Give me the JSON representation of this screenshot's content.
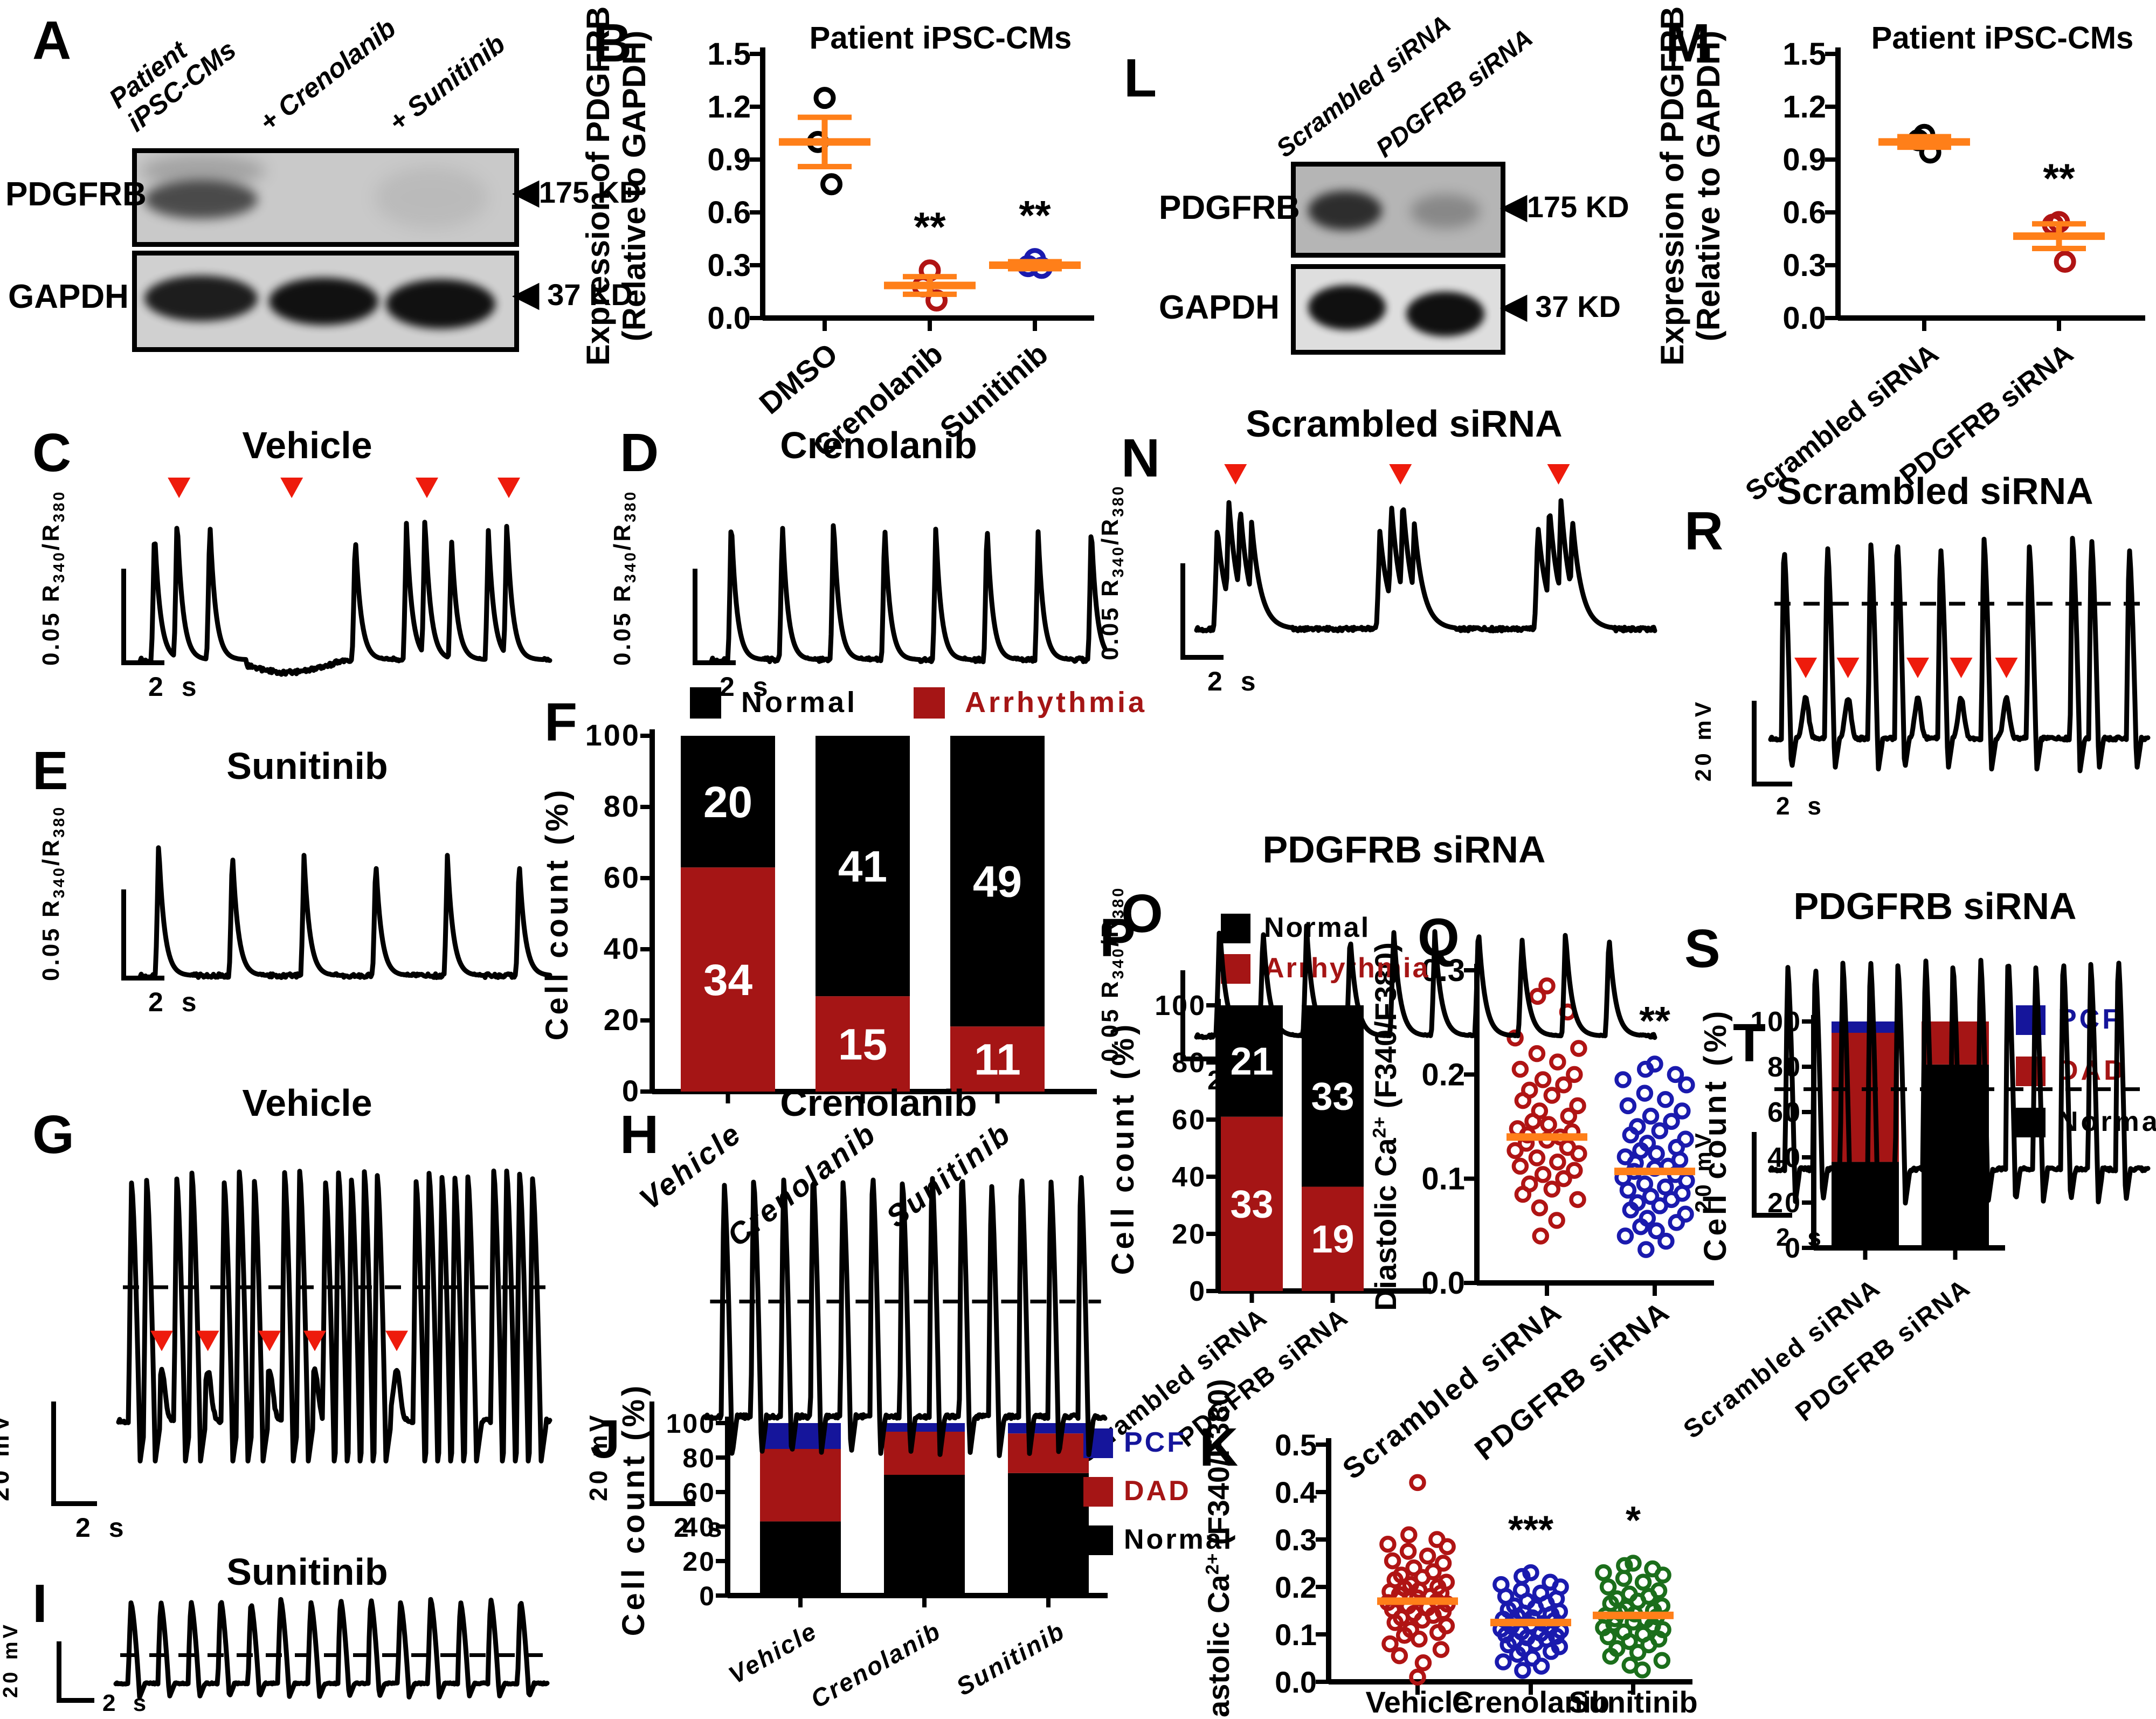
{
  "colors": {
    "black": "#000000",
    "red": "#B01414",
    "darkred_bar": "#A51515",
    "blue": "#1A1AAE",
    "navy_bar": "#15159B",
    "green": "#1B6E1B",
    "orange": "#FF7F19",
    "arrow": "#EE1B0C"
  },
  "labels": {
    "sec": "2 s",
    "mv": "20 mV",
    "ca_pre": "0.05 R",
    "ca_s1": "340",
    "ca_mid": "/R",
    "ca_s2": "380",
    "pdgfrb": "PDGFRB",
    "gapdh": "GAPDH",
    "kd175": "175 KD",
    "kd37": "37 KD",
    "tri": "◀"
  },
  "panels": {
    "A": {
      "letter": "A",
      "lane1": "Patient\niPSC-CMs",
      "lane2": "+ Crenolanib",
      "lane3": "+ Sunitinib"
    },
    "B": {
      "letter": "B",
      "title": "Patient iPSC-CMs",
      "ylabel1": "Expression of PDGFRB",
      "ylabel2": "(Relative to GAPDH)",
      "yticks": [
        "1.5",
        "1.2",
        "0.9",
        "0.6",
        "0.3",
        "0.0"
      ],
      "groups": [
        {
          "name": "DMSO",
          "color": "black",
          "values": [
            1.25,
            1.0,
            0.76
          ],
          "mean": 1.0,
          "sem": 0.14
        },
        {
          "name": "Crenolanib",
          "color": "red",
          "values": [
            0.27,
            0.18,
            0.1
          ],
          "mean": 0.185,
          "sem": 0.05,
          "sig": "**"
        },
        {
          "name": "Sunitinib",
          "color": "blue",
          "values": [
            0.335,
            0.295,
            0.285
          ],
          "mean": 0.3,
          "sem": 0.02,
          "sig": "**"
        }
      ]
    },
    "L": {
      "letter": "L",
      "lane1": "Scrambled siRNA",
      "lane2": "PDGFRB siRNA"
    },
    "M": {
      "letter": "M",
      "title": "Patient iPSC-CMs",
      "ylabel1": "Expression of PDGFRB",
      "ylabel2": "(Relative to GAPDH)",
      "yticks": [
        "1.5",
        "1.2",
        "0.9",
        "0.6",
        "0.3",
        "0.0"
      ],
      "groups": [
        {
          "name": "Scrambled siRNA",
          "color": "black",
          "values": [
            1.04,
            1.01,
            0.94
          ],
          "mean": 1.0,
          "sem": 0.03
        },
        {
          "name": "PDGFRB siRNA",
          "color": "red",
          "values": [
            0.545,
            0.53,
            0.32
          ],
          "mean": 0.465,
          "sem": 0.07,
          "sig": "**"
        }
      ]
    },
    "C": {
      "letter": "C",
      "title": "Vehicle",
      "trace": {
        "kind": "ca",
        "peaks": [
          [
            0.035,
            0.92
          ],
          [
            0.09,
            1.0
          ],
          [
            0.17,
            0.98
          ],
          [
            0.525,
            0.88
          ],
          [
            0.65,
            0.95
          ],
          [
            0.695,
            1.0
          ],
          [
            0.76,
            0.85
          ],
          [
            0.85,
            0.9
          ],
          [
            0.895,
            0.97
          ]
        ],
        "sag": [
          0.22,
          0.5
        ],
        "arrows": [
          0.095,
          0.37,
          0.7,
          0.9
        ]
      }
    },
    "D": {
      "letter": "D",
      "title": "Crenolanib",
      "trace": {
        "kind": "ca",
        "peaks": [
          [
            0.05,
            1
          ],
          [
            0.18,
            0.97
          ],
          [
            0.31,
            1
          ],
          [
            0.44,
            0.96
          ],
          [
            0.57,
            0.93
          ],
          [
            0.7,
            0.97
          ],
          [
            0.83,
            0.9
          ],
          [
            0.965,
            0.95
          ]
        ]
      }
    },
    "E": {
      "letter": "E",
      "title": "Sunitinib",
      "trace": {
        "kind": "ca",
        "peaks": [
          [
            0.045,
            1
          ],
          [
            0.225,
            0.95
          ],
          [
            0.4,
            0.9
          ],
          [
            0.575,
            0.88
          ],
          [
            0.75,
            0.9
          ],
          [
            0.925,
            0.88
          ]
        ]
      }
    },
    "N": {
      "letter": "N",
      "title": "Scrambled siRNA",
      "trace": {
        "kind": "ca",
        "dk": 0.02,
        "peaks": [
          [
            0.045,
            0.78
          ],
          [
            0.07,
            1.0
          ],
          [
            0.095,
            0.95
          ],
          [
            0.12,
            0.82
          ],
          [
            0.4,
            0.75
          ],
          [
            0.425,
            0.97
          ],
          [
            0.45,
            1.0
          ],
          [
            0.475,
            0.82
          ],
          [
            0.745,
            0.8
          ],
          [
            0.77,
            0.95
          ],
          [
            0.795,
            1.0
          ],
          [
            0.82,
            0.86
          ]
        ],
        "arrows": [
          0.085,
          0.445,
          0.79
        ]
      }
    },
    "O": {
      "letter": "O",
      "title": "PDGFRB siRNA",
      "trace": {
        "kind": "ca",
        "peaks": [
          [
            0.05,
            1
          ],
          [
            0.145,
            0.95
          ],
          [
            0.24,
            0.97
          ],
          [
            0.335,
            0.9
          ],
          [
            0.43,
            0.95
          ],
          [
            0.52,
            0.92
          ],
          [
            0.615,
            0.97
          ],
          [
            0.71,
            0.88
          ],
          [
            0.805,
            0.93
          ],
          [
            0.9,
            0.9
          ]
        ]
      }
    },
    "G": {
      "letter": "G",
      "title": "Vehicle",
      "trace": {
        "kind": "ap",
        "dash": 0.4,
        "arrowY": 0.53,
        "spikes": [
          0.03,
          0.065,
          0.135,
          0.17,
          0.245,
          0.28,
          0.315,
          0.385,
          0.42,
          0.48,
          0.51,
          0.54,
          0.57,
          0.6,
          0.69,
          0.72,
          0.75,
          0.78,
          0.81,
          0.87,
          0.9,
          0.93,
          0.96
        ],
        "dads": [
          0.1,
          0.207,
          0.35,
          0.455,
          0.645
        ],
        "arrows": [
          0.1,
          0.207,
          0.35,
          0.455,
          0.645
        ]
      }
    },
    "H": {
      "letter": "H",
      "title": "Crenolanib",
      "trace": {
        "kind": "ap",
        "dash": 0.45,
        "spikes": [
          0.045,
          0.119,
          0.194,
          0.268,
          0.343,
          0.417,
          0.492,
          0.566,
          0.641,
          0.715,
          0.79,
          0.864,
          0.939
        ]
      }
    },
    "I": {
      "letter": "I",
      "title": "Sunitinib",
      "trace": {
        "kind": "ap",
        "dash": 0.55,
        "spikes": [
          0.035,
          0.104,
          0.174,
          0.243,
          0.313,
          0.382,
          0.452,
          0.521,
          0.591,
          0.66,
          0.73,
          0.799,
          0.869,
          0.938
        ]
      }
    },
    "R": {
      "letter": "R",
      "title": "Scrambled siRNA",
      "trace": {
        "kind": "ap",
        "dash": 0.3,
        "arrowY": 0.5,
        "spikes": [
          0.035,
          0.15,
          0.265,
          0.335,
          0.45,
          0.565,
          0.685,
          0.8,
          0.85,
          0.95
        ],
        "dads": [
          0.093,
          0.205,
          0.39,
          0.505,
          0.625
        ],
        "arrows": [
          0.093,
          0.205,
          0.39,
          0.505,
          0.625
        ]
      }
    },
    "S": {
      "letter": "S",
      "title": "PDGFRB siRNA",
      "trace": {
        "kind": "ap",
        "dash": 0.52,
        "spikes": [
          0.045,
          0.118,
          0.191,
          0.264,
          0.337,
          0.41,
          0.483,
          0.556,
          0.629,
          0.702,
          0.775,
          0.848,
          0.921
        ]
      }
    },
    "F": {
      "letter": "F",
      "ylabel": "Cell count (%)",
      "yticks": [
        0,
        20,
        40,
        60,
        80,
        100
      ],
      "legend": [
        {
          "label": "Normal",
          "color": "black"
        },
        {
          "label": "Arrhythmia",
          "color": "darkred_bar"
        }
      ],
      "cats": [
        "Vehicle",
        "Crenolanib",
        "Sunitinib"
      ],
      "bars": [
        {
          "segs": [
            {
              "color": "darkred_bar",
              "pct": 63,
              "n": "34"
            },
            {
              "color": "black",
              "pct": 37,
              "n": "20"
            }
          ]
        },
        {
          "segs": [
            {
              "color": "darkred_bar",
              "pct": 26.8,
              "n": "15"
            },
            {
              "color": "black",
              "pct": 73.2,
              "n": "41"
            }
          ]
        },
        {
          "segs": [
            {
              "color": "darkred_bar",
              "pct": 18.3,
              "n": "11"
            },
            {
              "color": "black",
              "pct": 81.7,
              "n": "49"
            }
          ]
        }
      ]
    },
    "P": {
      "letter": "P",
      "ylabel": "Cell count (%)",
      "yticks": [
        0,
        20,
        40,
        60,
        80,
        100
      ],
      "legend": [
        {
          "label": "Normal",
          "color": "black"
        },
        {
          "label": "Arrhythmia",
          "color": "darkred_bar"
        }
      ],
      "cats": [
        "Scrambled siRNA",
        "PDGFRB siRNA"
      ],
      "bars": [
        {
          "segs": [
            {
              "color": "darkred_bar",
              "pct": 61,
              "n": "33"
            },
            {
              "color": "black",
              "pct": 39,
              "n": "21"
            }
          ]
        },
        {
          "segs": [
            {
              "color": "darkred_bar",
              "pct": 36.5,
              "n": "19"
            },
            {
              "color": "black",
              "pct": 63.5,
              "n": "33"
            }
          ]
        }
      ]
    },
    "J": {
      "letter": "J",
      "ylabel": "Cell count (%)",
      "yticks": [
        0,
        20,
        40,
        60,
        80,
        100
      ],
      "legend": [
        {
          "label": "PCF",
          "color": "navy_bar"
        },
        {
          "label": "DAD",
          "color": "darkred_bar"
        },
        {
          "label": "Normal",
          "color": "black"
        }
      ],
      "cats": [
        "Vehicle",
        "Crenolanib",
        "Sunitinib"
      ],
      "bars": [
        {
          "segs": [
            {
              "color": "black",
              "pct": 43
            },
            {
              "color": "darkred_bar",
              "pct": 42
            },
            {
              "color": "navy_bar",
              "pct": 15
            }
          ]
        },
        {
          "segs": [
            {
              "color": "black",
              "pct": 70
            },
            {
              "color": "darkred_bar",
              "pct": 25
            },
            {
              "color": "navy_bar",
              "pct": 5
            }
          ]
        },
        {
          "segs": [
            {
              "color": "black",
              "pct": 71
            },
            {
              "color": "darkred_bar",
              "pct": 23
            },
            {
              "color": "navy_bar",
              "pct": 6
            }
          ]
        }
      ]
    },
    "T": {
      "letter": "T",
      "ylabel": "Cell count (%)",
      "yticks": [
        0,
        20,
        40,
        60,
        80,
        100
      ],
      "legend": [
        {
          "label": "PCF",
          "color": "navy_bar"
        },
        {
          "label": "DAD",
          "color": "darkred_bar"
        },
        {
          "label": "Normal",
          "color": "black"
        }
      ],
      "cats": [
        "Scrambled siRNA",
        "PDGFRB siRNA"
      ],
      "bars": [
        {
          "segs": [
            {
              "color": "black",
              "pct": 38
            },
            {
              "color": "darkred_bar",
              "pct": 57
            },
            {
              "color": "navy_bar",
              "pct": 5
            }
          ]
        },
        {
          "segs": [
            {
              "color": "black",
              "pct": 81
            },
            {
              "color": "darkred_bar",
              "pct": 19
            }
          ]
        }
      ]
    },
    "Q": {
      "letter": "Q",
      "ylabel_segs": [
        {
          "t": "Diastolic Ca"
        },
        {
          "sup": "2+"
        },
        {
          "t": " (F340/F380)"
        }
      ],
      "yticks": [
        "0.3",
        "0.2",
        "0.1",
        "0.0"
      ],
      "groups": [
        {
          "name": "Scrambled siRNA",
          "color": "red",
          "mean": 0.14,
          "values": [
            0.285,
            0.275,
            0.26,
            0.235,
            0.225,
            0.22,
            0.212,
            0.205,
            0.2,
            0.195,
            0.19,
            0.185,
            0.18,
            0.175,
            0.17,
            0.165,
            0.16,
            0.155,
            0.152,
            0.148,
            0.145,
            0.142,
            0.14,
            0.137,
            0.134,
            0.13,
            0.127,
            0.124,
            0.12,
            0.116,
            0.112,
            0.108,
            0.104,
            0.1,
            0.095,
            0.09,
            0.085,
            0.08,
            0.072,
            0.06,
            0.045
          ]
        },
        {
          "name": "PDGFRB siRNA",
          "color": "blue",
          "mean": 0.107,
          "sig": "**",
          "values": [
            0.21,
            0.205,
            0.2,
            0.195,
            0.19,
            0.182,
            0.176,
            0.17,
            0.165,
            0.16,
            0.155,
            0.15,
            0.146,
            0.142,
            0.138,
            0.134,
            0.13,
            0.127,
            0.124,
            0.121,
            0.118,
            0.115,
            0.112,
            0.11,
            0.107,
            0.104,
            0.101,
            0.098,
            0.095,
            0.092,
            0.089,
            0.086,
            0.083,
            0.08,
            0.077,
            0.074,
            0.07,
            0.066,
            0.062,
            0.058,
            0.054,
            0.05,
            0.045,
            0.04,
            0.032
          ]
        }
      ]
    },
    "K": {
      "letter": "K",
      "ylabel_segs": [
        {
          "t": "Diastolic Ca"
        },
        {
          "sup": "2+"
        },
        {
          "t": " (F340/F380)"
        }
      ],
      "yticks": [
        "0.5",
        "0.4",
        "0.3",
        "0.2",
        "0.1",
        "0.0"
      ],
      "groups": [
        {
          "name": "Vehicle",
          "color": "red",
          "mean": 0.17,
          "values": [
            0.42,
            0.31,
            0.3,
            0.29,
            0.285,
            0.275,
            0.265,
            0.255,
            0.25,
            0.24,
            0.232,
            0.225,
            0.22,
            0.215,
            0.21,
            0.205,
            0.2,
            0.197,
            0.193,
            0.19,
            0.187,
            0.184,
            0.18,
            0.177,
            0.174,
            0.17,
            0.167,
            0.164,
            0.16,
            0.156,
            0.152,
            0.148,
            0.144,
            0.14,
            0.135,
            0.13,
            0.125,
            0.118,
            0.11,
            0.104,
            0.098,
            0.09,
            0.08,
            0.068,
            0.055,
            0.04,
            0.01
          ]
        },
        {
          "name": "Crenolanib",
          "color": "blue",
          "mean": 0.125,
          "sig": "***",
          "values": [
            0.23,
            0.222,
            0.21,
            0.205,
            0.2,
            0.193,
            0.187,
            0.18,
            0.175,
            0.17,
            0.165,
            0.16,
            0.156,
            0.152,
            0.148,
            0.145,
            0.142,
            0.138,
            0.135,
            0.132,
            0.129,
            0.126,
            0.123,
            0.12,
            0.117,
            0.114,
            0.111,
            0.108,
            0.105,
            0.102,
            0.099,
            0.096,
            0.093,
            0.09,
            0.086,
            0.082,
            0.078,
            0.074,
            0.07,
            0.064,
            0.058,
            0.05,
            0.042,
            0.033,
            0.024
          ]
        },
        {
          "name": "Sunitinib",
          "color": "green",
          "mean": 0.14,
          "sig": "*",
          "values": [
            0.25,
            0.245,
            0.238,
            0.23,
            0.225,
            0.218,
            0.21,
            0.2,
            0.192,
            0.185,
            0.18,
            0.175,
            0.17,
            0.165,
            0.16,
            0.155,
            0.15,
            0.147,
            0.143,
            0.14,
            0.137,
            0.133,
            0.13,
            0.126,
            0.122,
            0.118,
            0.114,
            0.11,
            0.105,
            0.1,
            0.095,
            0.09,
            0.085,
            0.078,
            0.07,
            0.062,
            0.054,
            0.045,
            0.035,
            0.025
          ]
        }
      ]
    }
  }
}
